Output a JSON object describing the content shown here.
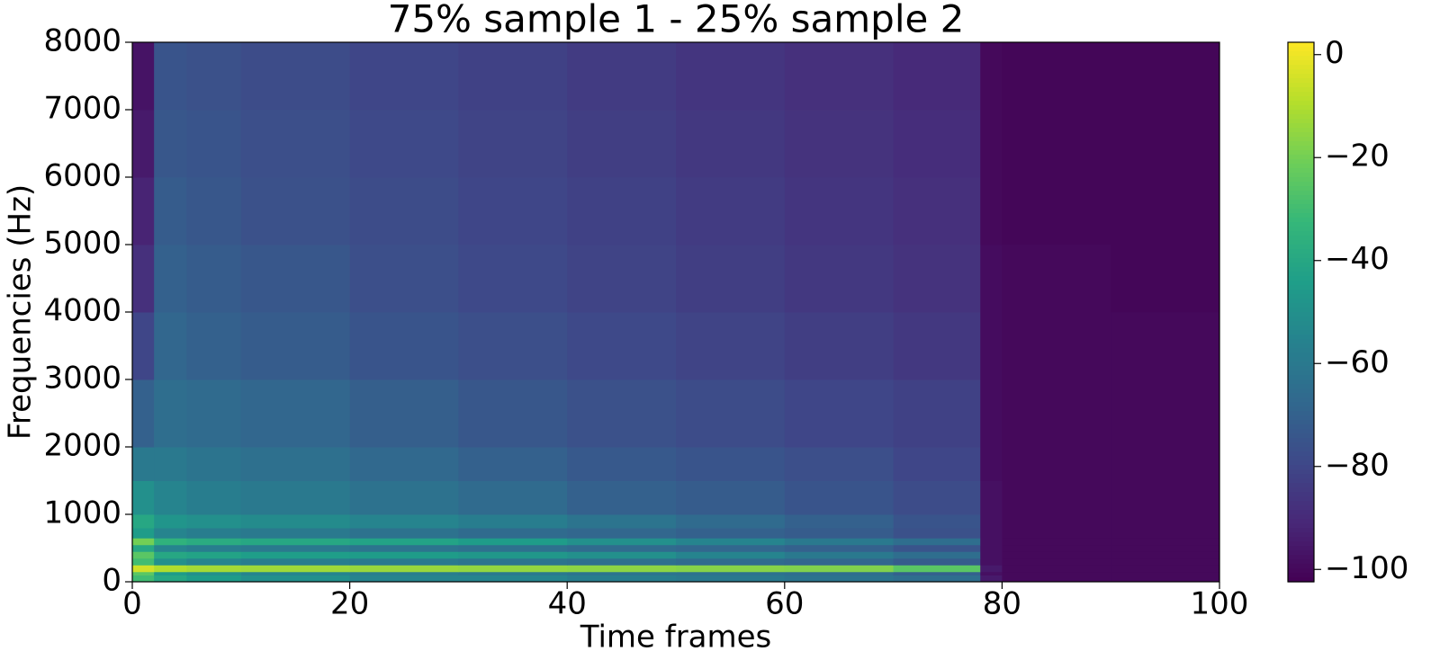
{
  "chart_data": {
    "type": "heatmap",
    "title": "75% sample 1 - 25% sample 2",
    "x_label": "Time frames",
    "y_label": "Frequencies (Hz)",
    "colormap": "viridis",
    "xlim": [
      0,
      100
    ],
    "xticks": [
      0,
      20,
      40,
      60,
      80,
      100
    ],
    "ylim": [
      0,
      8000
    ],
    "yticks": [
      0,
      1000,
      2000,
      3000,
      4000,
      5000,
      6000,
      7000,
      8000
    ],
    "x_edges": [
      0,
      2,
      5,
      10,
      20,
      30,
      40,
      50,
      60,
      70,
      78,
      80,
      90,
      100
    ],
    "y_edges": [
      0,
      100,
      150,
      250,
      350,
      450,
      550,
      650,
      800,
      1000,
      1500,
      2000,
      3000,
      4000,
      5000,
      6000,
      7000,
      8000
    ],
    "z": [
      [
        -30,
        -40,
        -45,
        -50,
        -55,
        -55,
        -58,
        -60,
        -62,
        -65,
        -95,
        -100,
        -100
      ],
      [
        -25,
        -45,
        -50,
        -55,
        -58,
        -60,
        -62,
        -63,
        -65,
        -70,
        -98,
        -100,
        -100
      ],
      [
        -5,
        -10,
        -12,
        -13,
        -14,
        -15,
        -16,
        -17,
        -18,
        -25,
        -95,
        -100,
        -100
      ],
      [
        -30,
        -50,
        -55,
        -58,
        -60,
        -62,
        -64,
        -66,
        -68,
        -72,
        -98,
        -100,
        -100
      ],
      [
        -25,
        -40,
        -42,
        -44,
        -45,
        -47,
        -50,
        -55,
        -60,
        -65,
        -98,
        -100,
        -100
      ],
      [
        -40,
        -55,
        -58,
        -60,
        -62,
        -64,
        -66,
        -68,
        -70,
        -75,
        -98,
        -100,
        -100
      ],
      [
        -20,
        -35,
        -38,
        -40,
        -42,
        -45,
        -50,
        -55,
        -60,
        -65,
        -98,
        -100,
        -100
      ],
      [
        -45,
        -55,
        -58,
        -60,
        -63,
        -66,
        -68,
        -70,
        -72,
        -76,
        -98,
        -100,
        -100
      ],
      [
        -40,
        -48,
        -50,
        -52,
        -55,
        -58,
        -62,
        -66,
        -70,
        -75,
        -98,
        -100,
        -100
      ],
      [
        -50,
        -55,
        -58,
        -60,
        -63,
        -66,
        -70,
        -72,
        -75,
        -78,
        -98,
        -100,
        -100
      ],
      [
        -60,
        -60,
        -62,
        -64,
        -67,
        -70,
        -73,
        -75,
        -77,
        -80,
        -99,
        -100,
        -100
      ],
      [
        -70,
        -65,
        -66,
        -68,
        -71,
        -74,
        -76,
        -78,
        -80,
        -82,
        -99,
        -100,
        -100
      ],
      [
        -80,
        -68,
        -70,
        -72,
        -75,
        -77,
        -79,
        -81,
        -83,
        -85,
        -99,
        -100,
        -100
      ],
      [
        -88,
        -70,
        -72,
        -74,
        -77,
        -79,
        -81,
        -83,
        -85,
        -87,
        -99,
        -100,
        -101
      ],
      [
        -92,
        -72,
        -74,
        -76,
        -78,
        -80,
        -82,
        -84,
        -86,
        -88,
        -100,
        -101,
        -101
      ],
      [
        -95,
        -74,
        -75,
        -77,
        -79,
        -81,
        -83,
        -85,
        -87,
        -89,
        -100,
        -101,
        -101
      ],
      [
        -97,
        -75,
        -76,
        -78,
        -80,
        -82,
        -84,
        -86,
        -88,
        -90,
        -100,
        -101,
        -101
      ]
    ],
    "clim": [
      -102.4,
      2.4
    ],
    "cticks": [
      0,
      {
        "value": -20,
        "label": "−20"
      },
      {
        "value": -40,
        "label": "−40"
      },
      {
        "value": -60,
        "label": "−60"
      },
      {
        "value": -80,
        "label": "−80"
      },
      {
        "value": -100,
        "label": "−100"
      }
    ]
  }
}
